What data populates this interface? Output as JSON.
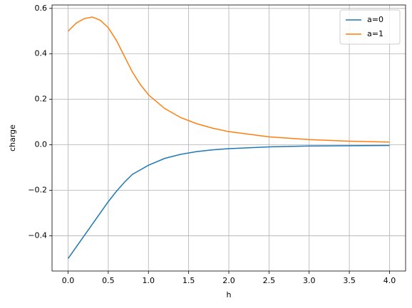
{
  "chart_data": {
    "type": "line",
    "xlabel": "h",
    "ylabel": "charge",
    "x": [
      0,
      0.1,
      0.2,
      0.3,
      0.4,
      0.5,
      0.6,
      0.7,
      0.8,
      0.9,
      1.0,
      1.2,
      1.4,
      1.6,
      1.8,
      2.0,
      2.5,
      3.0,
      3.5,
      4.0
    ],
    "series": [
      {
        "name": "a=0",
        "color": "#1f77b4",
        "values": [
          -0.5,
          -0.45,
          -0.4,
          -0.35,
          -0.3,
          -0.25,
          -0.205,
          -0.165,
          -0.13,
          -0.11,
          -0.09,
          -0.06,
          -0.042,
          -0.03,
          -0.022,
          -0.017,
          -0.009,
          -0.005,
          -0.004,
          -0.003
        ]
      },
      {
        "name": "a=1",
        "color": "#ff7f0e",
        "values": [
          0.5,
          0.535,
          0.555,
          0.562,
          0.548,
          0.515,
          0.46,
          0.39,
          0.32,
          0.265,
          0.22,
          0.16,
          0.12,
          0.093,
          0.073,
          0.058,
          0.035,
          0.023,
          0.016,
          0.012
        ]
      }
    ],
    "xlim": [
      -0.2,
      4.2
    ],
    "xticks": [
      {
        "value": 0,
        "label": "0.0"
      },
      0.5,
      {
        "value": 1,
        "label": "1.0"
      },
      1.5,
      {
        "value": 2,
        "label": "2.0"
      },
      2.5,
      {
        "value": 3,
        "label": "3.0"
      },
      3.5,
      {
        "value": 4,
        "label": "4.0"
      }
    ],
    "ylim": [
      -0.555,
      0.615
    ],
    "yticks": [
      {
        "value": -0.4,
        "label": "−0.4"
      },
      {
        "value": -0.2,
        "label": "−0.2"
      },
      {
        "value": 0,
        "label": "0.0"
      },
      0.2,
      0.4,
      0.6
    ],
    "grid": true,
    "legend": "upper-right"
  }
}
